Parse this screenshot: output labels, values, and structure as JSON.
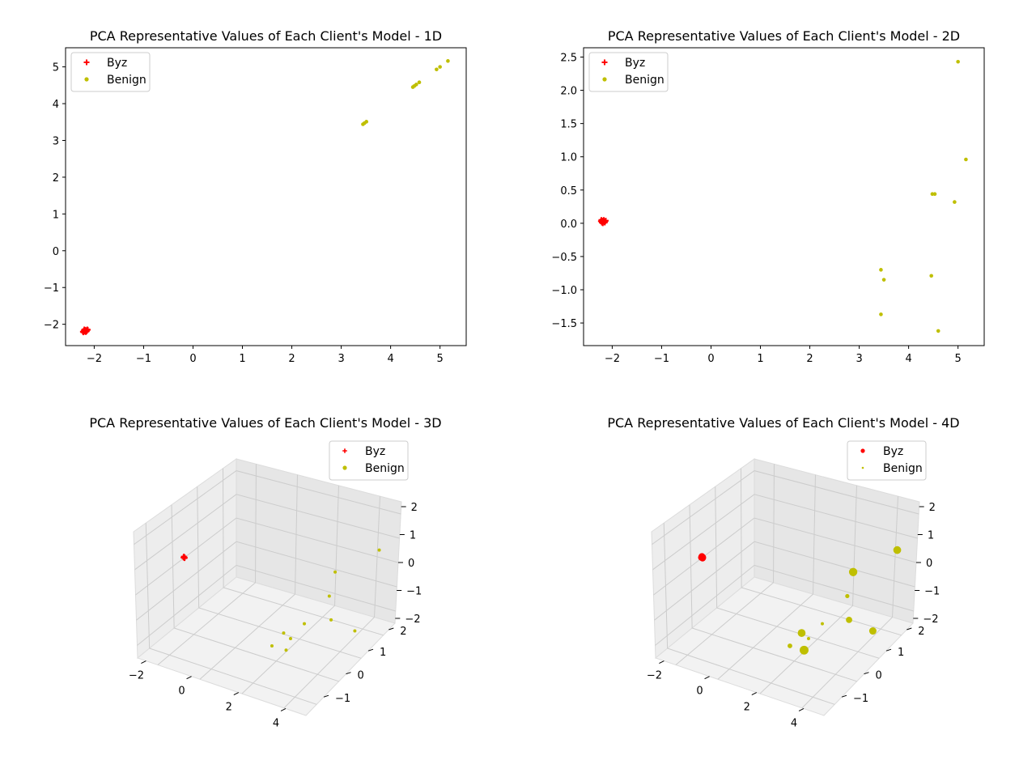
{
  "figure": {
    "background": "#ffffff",
    "colors": {
      "byz": "#ff0000",
      "benign": "#bfbf00",
      "axis": "#000000",
      "grid": "#cccccc",
      "pane": "#f2f2f2"
    }
  },
  "chart_data": [
    {
      "type": "scatter",
      "title": "PCA Representative Values of Each Client's Model - 1D",
      "xlabel": "",
      "ylabel": "",
      "xlim": [
        -2.58,
        5.53
      ],
      "ylim": [
        -2.58,
        5.52
      ],
      "xticks": [
        -2,
        -1,
        0,
        1,
        2,
        3,
        4,
        5
      ],
      "yticks": [
        -2,
        -1,
        0,
        1,
        2,
        3,
        4,
        5
      ],
      "xtick_labels": [
        "−2",
        "−1",
        "0",
        "1",
        "2",
        "3",
        "4",
        "5"
      ],
      "ytick_labels": [
        "−2",
        "−1",
        "0",
        "1",
        "2",
        "3",
        "4",
        "5"
      ],
      "legend": {
        "placement": "top-left",
        "entries": [
          "Byz",
          "Benign"
        ]
      },
      "grid": false,
      "series": [
        {
          "name": "Byz",
          "marker": "plus",
          "color": "#ff0000",
          "points": [
            [
              -2.22,
              -2.22
            ],
            [
              -2.2,
              -2.2
            ],
            [
              -2.18,
              -2.18
            ],
            [
              -2.16,
              -2.16
            ],
            [
              -2.14,
              -2.14
            ],
            [
              -2.21,
              -2.17
            ],
            [
              -2.17,
              -2.21
            ],
            [
              -2.19,
              -2.15
            ],
            [
              -2.15,
              -2.19
            ],
            [
              -2.2,
              -2.14
            ],
            [
              -2.13,
              -2.15
            ],
            [
              -2.23,
              -2.2
            ]
          ]
        },
        {
          "name": "Benign",
          "marker": "dot",
          "color": "#bfbf00",
          "points": [
            [
              3.44,
              3.44
            ],
            [
              3.47,
              3.47
            ],
            [
              3.51,
              3.51
            ],
            [
              4.45,
              4.45
            ],
            [
              4.48,
              4.48
            ],
            [
              4.52,
              4.52
            ],
            [
              4.58,
              4.58
            ],
            [
              4.93,
              4.93
            ],
            [
              5.0,
              5.0
            ],
            [
              5.16,
              5.16
            ]
          ]
        }
      ]
    },
    {
      "type": "scatter",
      "title": "PCA Representative Values of Each Client's Model - 2D",
      "xlabel": "",
      "ylabel": "",
      "xlim": [
        -2.58,
        5.53
      ],
      "ylim": [
        -1.84,
        2.64
      ],
      "xticks": [
        -2,
        -1,
        0,
        1,
        2,
        3,
        4,
        5
      ],
      "yticks": [
        -1.5,
        -1.0,
        -0.5,
        0.0,
        0.5,
        1.0,
        1.5,
        2.0,
        2.5
      ],
      "xtick_labels": [
        "−2",
        "−1",
        "0",
        "1",
        "2",
        "3",
        "4",
        "5"
      ],
      "ytick_labels": [
        "−1.5",
        "−1.0",
        "−0.5",
        "0.0",
        "0.5",
        "1.0",
        "1.5",
        "2.0",
        "2.5"
      ],
      "legend": {
        "placement": "top-left",
        "entries": [
          "Byz",
          "Benign"
        ]
      },
      "grid": false,
      "series": [
        {
          "name": "Byz",
          "marker": "plus",
          "color": "#ff0000",
          "points": [
            [
              -2.22,
              0.05
            ],
            [
              -2.2,
              0.04
            ],
            [
              -2.18,
              0.03
            ],
            [
              -2.16,
              0.02
            ],
            [
              -2.14,
              0.03
            ],
            [
              -2.21,
              0.01
            ],
            [
              -2.17,
              0.05
            ],
            [
              -2.19,
              0.0
            ],
            [
              -2.15,
              0.01
            ],
            [
              -2.2,
              0.02
            ],
            [
              -2.13,
              0.04
            ],
            [
              -2.23,
              0.03
            ]
          ]
        },
        {
          "name": "Benign",
          "marker": "dot",
          "color": "#bfbf00",
          "points": [
            [
              3.44,
              -0.7
            ],
            [
              3.44,
              -1.37
            ],
            [
              3.5,
              -0.85
            ],
            [
              4.46,
              -0.79
            ],
            [
              4.48,
              0.44
            ],
            [
              4.53,
              0.44
            ],
            [
              4.6,
              -1.62
            ],
            [
              4.93,
              0.32
            ],
            [
              5.0,
              2.43
            ],
            [
              5.16,
              0.96
            ]
          ]
        }
      ]
    },
    {
      "type": "scatter",
      "title": "PCA Representative Values of Each Client's Model - 3D",
      "projection": "3d",
      "xticks": [
        -2,
        0,
        2,
        4
      ],
      "yticks": [
        -1,
        0,
        1,
        2
      ],
      "zticks": [
        -2,
        -1,
        0,
        1,
        2
      ],
      "xtick_labels": [
        "−2",
        "0",
        "2",
        "4"
      ],
      "ytick_labels": [
        "−1",
        "0",
        "1",
        "2"
      ],
      "ztick_labels": [
        "−2",
        "−1",
        "0",
        "1",
        "2"
      ],
      "legend": {
        "placement": "top-right",
        "entries": [
          "Byz",
          "Benign"
        ]
      },
      "grid": true,
      "series": [
        {
          "name": "Byz",
          "marker": "plus",
          "color": "#ff0000",
          "points": [
            [
              -2.18,
              0.02,
              0.3
            ],
            [
              -2.2,
              0.04,
              0.32
            ],
            [
              -2.16,
              0.03,
              0.28
            ],
            [
              -2.19,
              0.01,
              0.31
            ],
            [
              -2.17,
              0.05,
              0.29
            ]
          ]
        },
        {
          "name": "Benign",
          "marker": "dot",
          "color": "#bfbf00",
          "points": [
            [
              3.44,
              -0.7,
              -1.1
            ],
            [
              3.44,
              -1.37,
              -0.5
            ],
            [
              3.5,
              -0.85,
              -0.4
            ],
            [
              4.46,
              -0.79,
              0.1
            ],
            [
              4.48,
              0.44,
              0.2
            ],
            [
              4.53,
              0.44,
              -0.6
            ],
            [
              4.6,
              -1.62,
              0.2
            ],
            [
              4.93,
              0.32,
              1.2
            ],
            [
              5.0,
              2.43,
              0.5
            ],
            [
              5.16,
              0.96,
              -1.2
            ]
          ]
        }
      ]
    },
    {
      "type": "scatter",
      "title": "PCA Representative Values of Each Client's Model - 4D",
      "projection": "3d",
      "xticks": [
        -2,
        0,
        2,
        4
      ],
      "yticks": [
        -1,
        0,
        1,
        2
      ],
      "zticks": [
        -2,
        -1,
        0,
        1,
        2
      ],
      "xtick_labels": [
        "−2",
        "0",
        "2",
        "4"
      ],
      "ytick_labels": [
        "−1",
        "0",
        "1",
        "2"
      ],
      "ztick_labels": [
        "−2",
        "−1",
        "0",
        "1",
        "2"
      ],
      "legend": {
        "placement": "top-right",
        "entries": [
          "Byz",
          "Benign"
        ]
      },
      "grid": true,
      "series": [
        {
          "name": "Byz",
          "marker": "dot",
          "color": "#ff0000",
          "points": [
            [
              -2.18,
              0.02,
              0.3,
              1.0
            ],
            [
              -2.2,
              0.04,
              0.32,
              1.0
            ],
            [
              -2.16,
              0.03,
              0.28,
              1.0
            ],
            [
              -2.19,
              0.01,
              0.31,
              1.0
            ],
            [
              -2.17,
              0.05,
              0.29,
              1.0
            ]
          ]
        },
        {
          "name": "Benign",
          "marker": "dot",
          "color": "#bfbf00",
          "points": [
            [
              3.44,
              -0.7,
              -1.1,
              1.4
            ],
            [
              3.44,
              -1.37,
              -0.5,
              0.6
            ],
            [
              3.5,
              -0.85,
              -0.4,
              1.2
            ],
            [
              4.46,
              -0.79,
              0.1,
              0.3
            ],
            [
              4.48,
              0.44,
              0.2,
              0.5
            ],
            [
              4.53,
              0.44,
              -0.6,
              0.9
            ],
            [
              4.6,
              -1.62,
              0.2,
              0.3
            ],
            [
              4.93,
              0.32,
              1.2,
              1.3
            ],
            [
              5.0,
              2.43,
              0.5,
              1.2
            ],
            [
              5.16,
              0.96,
              -1.2,
              1.1
            ]
          ]
        }
      ]
    }
  ]
}
